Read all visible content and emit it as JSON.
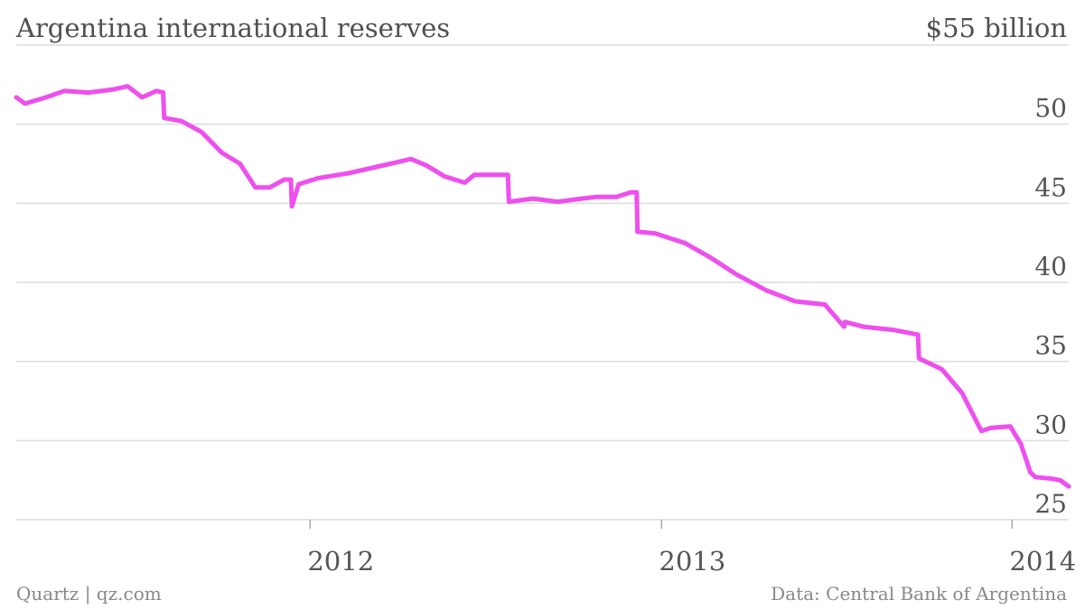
{
  "title": "Argentina international reserves",
  "top_right_label": "$55 billion",
  "footer": {
    "source_left": "Quartz | qz.com",
    "source_right": "Data: Central Bank of Argentina"
  },
  "colors": {
    "line": "#ee4fee",
    "grid": "#dcdcdc",
    "text": "#505050"
  },
  "chart_data": {
    "type": "line",
    "title": "Argentina international reserves",
    "unit_label": "$55 billion",
    "xlabel": "",
    "ylabel": "",
    "ylim": [
      25,
      55
    ],
    "xlim": [
      "2011-03-01",
      "2014-03-01"
    ],
    "yticks": [
      25,
      30,
      35,
      40,
      45,
      50
    ],
    "xticks": [
      {
        "date": "2012-01-01",
        "label": "2012"
      },
      {
        "date": "2013-01-01",
        "label": "2013"
      },
      {
        "date": "2014-01-01",
        "label": "2014"
      }
    ],
    "grid": true,
    "series": [
      {
        "x": [
          "2011-03-01",
          "2011-03-10",
          "2011-04-01",
          "2011-04-20",
          "2011-05-15",
          "2011-06-10",
          "2011-06-25",
          "2011-07-10",
          "2011-07-25",
          "2011-08-01",
          "2011-08-02",
          "2011-08-20",
          "2011-09-10",
          "2011-10-01",
          "2011-10-20",
          "2011-11-05",
          "2011-11-20",
          "2011-12-05",
          "2011-12-12",
          "2011-12-13",
          "2011-12-20",
          "2012-01-10",
          "2012-02-10",
          "2012-03-10",
          "2012-04-01",
          "2012-04-15",
          "2012-05-01",
          "2012-05-20",
          "2012-06-10",
          "2012-06-20",
          "2012-07-10",
          "2012-07-25",
          "2012-07-26",
          "2012-08-20",
          "2012-09-15",
          "2012-10-10",
          "2012-10-25",
          "2012-11-15",
          "2012-11-30",
          "2012-12-06",
          "2012-12-07",
          "2012-12-25",
          "2013-01-25",
          "2013-02-20",
          "2013-03-20",
          "2013-04-20",
          "2013-05-20",
          "2013-06-20",
          "2013-07-10",
          "2013-07-11",
          "2013-07-30",
          "2013-08-30",
          "2013-09-25",
          "2013-09-26",
          "2013-10-20",
          "2013-11-10",
          "2013-11-30",
          "2013-12-10",
          "2013-12-30",
          "2014-01-10",
          "2014-01-20",
          "2014-01-25",
          "2014-02-10",
          "2014-02-20",
          "2014-03-01"
        ],
        "values": [
          51.7,
          51.3,
          51.7,
          52.1,
          52.0,
          52.2,
          52.4,
          51.7,
          52.1,
          52.0,
          50.4,
          50.2,
          49.5,
          48.2,
          47.5,
          46.0,
          46.0,
          46.5,
          46.5,
          44.8,
          46.2,
          46.6,
          46.9,
          47.3,
          47.6,
          47.8,
          47.4,
          46.7,
          46.3,
          46.8,
          46.8,
          46.8,
          45.1,
          45.3,
          45.1,
          45.3,
          45.4,
          45.4,
          45.7,
          45.7,
          43.2,
          43.1,
          42.5,
          41.6,
          40.5,
          39.5,
          38.8,
          38.6,
          37.2,
          37.5,
          37.2,
          37.0,
          36.7,
          35.2,
          34.5,
          33.0,
          30.6,
          30.8,
          30.9,
          29.8,
          28.0,
          27.7,
          27.6,
          27.5,
          27.1
        ]
      }
    ]
  }
}
